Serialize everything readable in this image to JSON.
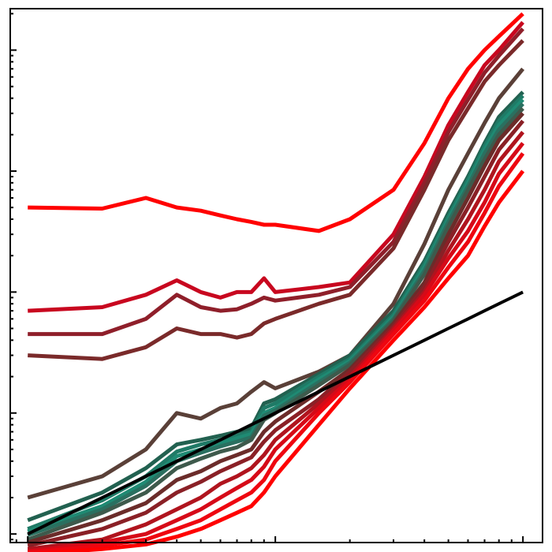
{
  "chart_data": {
    "type": "line",
    "title": "",
    "xlabel": "",
    "ylabel": "",
    "x_scale": "log",
    "y_scale": "log",
    "grid": false,
    "legend": "none",
    "xlim": [
      0.85,
      120
    ],
    "ylim": [
      0.0085,
      220
    ],
    "x": [
      1,
      2,
      3,
      4,
      5,
      6,
      7,
      8,
      9,
      10,
      15,
      20,
      30,
      40,
      50,
      60,
      70,
      80,
      100
    ],
    "reference_line": {
      "color": "#000000",
      "values": [
        0.01,
        0.02,
        0.03,
        0.04,
        0.05,
        0.06,
        0.07,
        0.08,
        0.09,
        0.1,
        0.15,
        0.2,
        0.3,
        0.4,
        0.5,
        0.6,
        0.7,
        0.8,
        1.0
      ]
    },
    "series": [
      {
        "color": "#ff0000",
        "values": [
          5.0,
          4.9,
          6.0,
          5.0,
          4.7,
          4.3,
          4.0,
          3.8,
          3.6,
          3.6,
          3.2,
          4.0,
          7.0,
          17.0,
          40.0,
          70.0,
          100.0,
          130.0,
          200.0
        ]
      },
      {
        "color": "#c8071f",
        "values": [
          0.7,
          0.75,
          0.95,
          1.25,
          1.0,
          0.9,
          1.0,
          1.0,
          1.3,
          1.0,
          1.1,
          1.2,
          3.0,
          9.0,
          24.0,
          45.0,
          75.0,
          100.0,
          170.0
        ]
      },
      {
        "color": "#8f1f2a",
        "values": [
          0.45,
          0.45,
          0.6,
          0.95,
          0.75,
          0.7,
          0.72,
          0.8,
          0.9,
          0.85,
          0.95,
          1.1,
          2.6,
          8.0,
          21.0,
          39.0,
          65.0,
          90.0,
          150.0
        ]
      },
      {
        "color": "#7a2a2a",
        "values": [
          0.3,
          0.28,
          0.35,
          0.5,
          0.45,
          0.45,
          0.42,
          0.45,
          0.55,
          0.6,
          0.8,
          0.95,
          2.3,
          7.0,
          18.0,
          33.0,
          55.0,
          75.0,
          120.0
        ]
      },
      {
        "color": "#5a4038",
        "values": [
          0.02,
          0.03,
          0.05,
          0.1,
          0.09,
          0.11,
          0.12,
          0.15,
          0.18,
          0.16,
          0.22,
          0.3,
          0.8,
          2.5,
          7.0,
          14.0,
          25.0,
          40.0,
          70.0
        ]
      },
      {
        "color": "#226150",
        "values": [
          0.013,
          0.022,
          0.035,
          0.055,
          0.06,
          0.065,
          0.07,
          0.075,
          0.12,
          0.13,
          0.21,
          0.3,
          0.7,
          1.8,
          4.5,
          9.0,
          17.0,
          28.0,
          45.0
        ]
      },
      {
        "color": "#1f7a66",
        "values": [
          0.011,
          0.019,
          0.03,
          0.048,
          0.055,
          0.06,
          0.065,
          0.07,
          0.11,
          0.12,
          0.2,
          0.28,
          0.65,
          1.7,
          4.2,
          8.5,
          16.0,
          26.0,
          42.0
        ]
      },
      {
        "color": "#1f8a73",
        "values": [
          0.0105,
          0.017,
          0.027,
          0.044,
          0.05,
          0.056,
          0.062,
          0.067,
          0.1,
          0.11,
          0.19,
          0.27,
          0.62,
          1.6,
          4.0,
          8.0,
          15.0,
          24.0,
          39.0
        ]
      },
      {
        "color": "#2a7060",
        "values": [
          0.0098,
          0.016,
          0.025,
          0.04,
          0.047,
          0.053,
          0.058,
          0.063,
          0.095,
          0.105,
          0.18,
          0.26,
          0.6,
          1.5,
          3.8,
          7.5,
          14.0,
          22.0,
          36.0
        ]
      },
      {
        "color": "#3e5a4c",
        "values": [
          0.009,
          0.015,
          0.022,
          0.035,
          0.042,
          0.048,
          0.052,
          0.06,
          0.088,
          0.1,
          0.17,
          0.25,
          0.58,
          1.4,
          3.5,
          7.0,
          12.5,
          20.0,
          33.0
        ]
      },
      {
        "color": "#6b2c2a",
        "values": [
          0.0085,
          0.013,
          0.018,
          0.028,
          0.033,
          0.04,
          0.045,
          0.05,
          0.07,
          0.085,
          0.15,
          0.23,
          0.55,
          1.2,
          3.0,
          6.0,
          11.0,
          18.0,
          30.0
        ]
      },
      {
        "color": "#8a2026",
        "values": [
          0.008,
          0.011,
          0.015,
          0.022,
          0.027,
          0.033,
          0.038,
          0.043,
          0.058,
          0.072,
          0.13,
          0.22,
          0.52,
          1.1,
          2.6,
          5.0,
          9.0,
          15.0,
          26.0
        ]
      },
      {
        "color": "#b0141e",
        "values": [
          0.0075,
          0.009,
          0.012,
          0.016,
          0.02,
          0.026,
          0.03,
          0.035,
          0.045,
          0.06,
          0.12,
          0.2,
          0.5,
          1.0,
          2.2,
          4.0,
          7.0,
          12.0,
          21.0
        ]
      },
      {
        "color": "#d60a18",
        "values": [
          0.0072,
          0.0085,
          0.01,
          0.013,
          0.016,
          0.02,
          0.024,
          0.028,
          0.036,
          0.05,
          0.11,
          0.19,
          0.48,
          0.95,
          1.9,
          3.2,
          5.5,
          9.5,
          17.0
        ]
      },
      {
        "color": "#ee0610",
        "values": [
          0.007,
          0.008,
          0.009,
          0.011,
          0.013,
          0.016,
          0.019,
          0.022,
          0.028,
          0.04,
          0.1,
          0.18,
          0.45,
          0.85,
          1.6,
          2.6,
          4.5,
          7.5,
          14.0
        ]
      },
      {
        "color": "#ff0000",
        "values": [
          0.0068,
          0.0075,
          0.0082,
          0.0095,
          0.011,
          0.013,
          0.015,
          0.017,
          0.022,
          0.03,
          0.08,
          0.16,
          0.4,
          0.75,
          1.3,
          2.0,
          3.5,
          5.5,
          10.0
        ]
      }
    ]
  }
}
